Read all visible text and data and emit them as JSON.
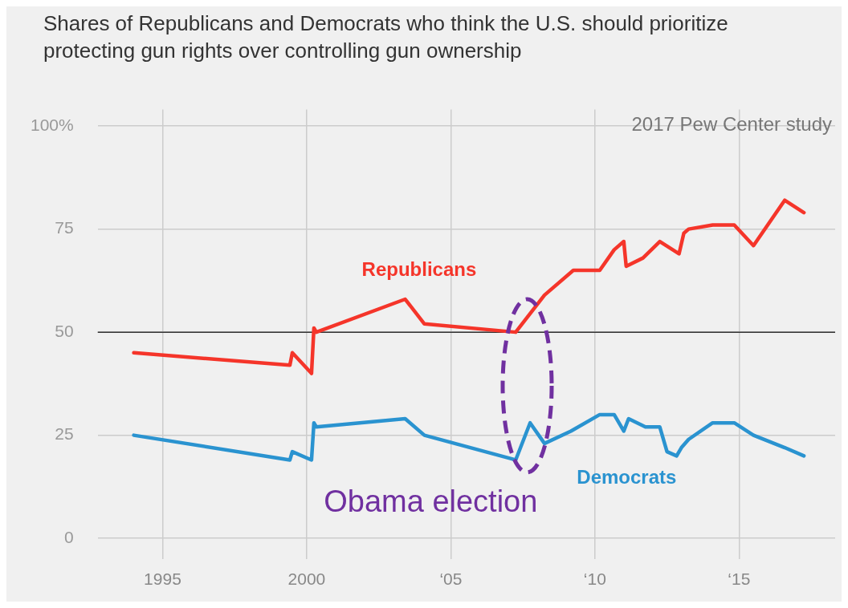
{
  "chart_data": {
    "type": "line",
    "title": "Shares of Republicans and Democrats who think the U.S. should prioritize protecting gun rights over controlling gun ownership",
    "xlim": [
      "1992-10",
      "2018-05"
    ],
    "xticks": [
      "1995",
      "2000",
      {
        "value": "2005",
        "label": "‘05"
      },
      {
        "value": "2010",
        "label": "‘10"
      },
      {
        "value": "2015",
        "label": "‘15"
      }
    ],
    "ylim": [
      -5,
      104
    ],
    "yticks": [
      0,
      25,
      50,
      75,
      {
        "value": 100,
        "label": "100%"
      }
    ],
    "grid": true,
    "legend": false,
    "marker": "none",
    "line_style": "solid",
    "ref_lines": [
      {
        "axis": "y",
        "value": 50,
        "color": "#333333"
      }
    ],
    "annotations": [
      "2017 Pew Center study",
      "Obama election"
    ],
    "series": [
      {
        "name": "Republicans",
        "color": "#f5352a",
        "x": [
          "1994-01",
          "1999-06",
          "1999-07",
          "2000-03",
          "2000-04",
          "2000-05",
          "2003-06",
          "2004-02",
          "2007-04",
          "2008-04",
          "2009-04",
          "2010-03",
          "2010-09",
          "2011-01",
          "2011-02",
          "2011-09",
          "2012-04",
          "2012-12",
          "2013-02",
          "2013-04",
          "2014-02",
          "2014-11",
          "2015-07",
          "2016-08",
          "2017-04"
        ],
        "values": [
          45,
          42,
          45,
          40,
          51,
          50,
          58,
          52,
          50,
          59,
          65,
          65,
          70,
          72,
          66,
          68,
          72,
          69,
          74,
          75,
          76,
          76,
          71,
          82,
          79
        ]
      },
      {
        "name": "Democrats",
        "color": "#2a93d0",
        "x": [
          "1994-01",
          "1999-06",
          "1999-07",
          "2000-03",
          "2000-04",
          "2000-05",
          "2003-06",
          "2004-02",
          "2007-04",
          "2007-10",
          "2008-04",
          "2009-03",
          "2010-03",
          "2010-09",
          "2011-01",
          "2011-03",
          "2011-10",
          "2012-04",
          "2012-07",
          "2012-11",
          "2013-01",
          "2013-04",
          "2014-02",
          "2014-11",
          "2015-07",
          "2016-08",
          "2017-04"
        ],
        "values": [
          25,
          19,
          21,
          19,
          28,
          27,
          29,
          25,
          19,
          28,
          23,
          26,
          30,
          30,
          26,
          29,
          27,
          27,
          21,
          20,
          22,
          24,
          28,
          28,
          25,
          22,
          20
        ]
      }
    ]
  }
}
